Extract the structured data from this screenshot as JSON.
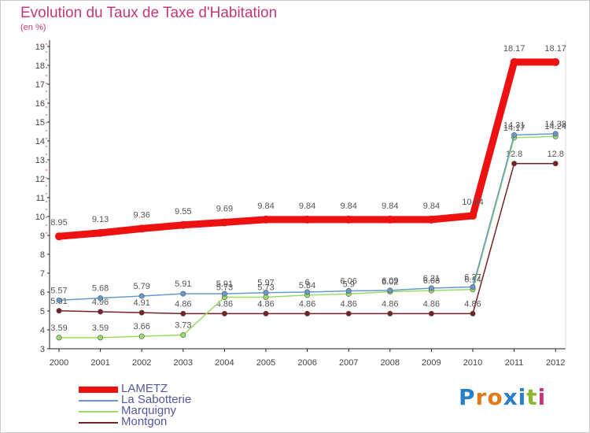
{
  "chart_data": {
    "type": "line",
    "title": "Evolution du Taux de Taxe d'Habitation",
    "ylabel": "(en %)",
    "xlabel": "",
    "ylim": [
      3,
      19
    ],
    "y_ticks": [
      "3",
      "4",
      "5",
      "6",
      "7",
      "8",
      "9",
      "10",
      "11",
      "12",
      "13",
      "14",
      "15",
      "16",
      "17",
      "18",
      "19"
    ],
    "categories": [
      "2000",
      "2001",
      "2002",
      "2003",
      "2004",
      "2005",
      "2006",
      "2007",
      "2008",
      "2009",
      "2010",
      "2011",
      "2012"
    ],
    "series": [
      {
        "name": "LAMETZ",
        "color": "#ee1111",
        "values": [
          8.95,
          9.13,
          9.36,
          9.55,
          9.69,
          9.84,
          9.84,
          9.84,
          9.84,
          9.84,
          10.04,
          18.17,
          18.17
        ],
        "labels": [
          "8.95",
          "9.13",
          "9.36",
          "9.55",
          "9.69",
          "9.84",
          "9.84",
          "9.84",
          "9.84",
          "9.84",
          "10.04",
          "18.17",
          "18.17"
        ]
      },
      {
        "name": "La Sabotterie",
        "color": "#6699cc",
        "values": [
          5.57,
          5.68,
          5.79,
          5.91,
          5.91,
          5.97,
          6.0,
          6.06,
          6.09,
          6.21,
          6.27,
          14.31,
          14.38
        ],
        "labels": [
          "5.57",
          "5.68",
          "5.79",
          "5.91",
          "5.91",
          "5.97",
          "6",
          "6.06",
          "6.09",
          "6.21",
          "6.27",
          "14.31",
          "14.38"
        ]
      },
      {
        "name": "Marquigny",
        "color": "#99dd66",
        "values": [
          3.59,
          3.59,
          3.66,
          3.73,
          5.73,
          5.73,
          5.84,
          5.9,
          6.02,
          6.08,
          6.14,
          14.17,
          14.24
        ],
        "labels": [
          "3.59",
          "3.59",
          "3.66",
          "3.73",
          "5.73",
          "5.73",
          "5.84",
          "5.9",
          "6.02",
          "6.08",
          "6.14",
          "14.17",
          "14.24"
        ]
      },
      {
        "name": "Montgon",
        "color": "#772222",
        "values": [
          5.01,
          4.96,
          4.91,
          4.86,
          4.86,
          4.86,
          4.86,
          4.86,
          4.86,
          4.86,
          4.86,
          12.8,
          12.8
        ],
        "labels": [
          "5.01",
          "4.96",
          "4.91",
          "4.86",
          "4.86",
          "4.86",
          "4.86",
          "4.86",
          "4.86",
          "4.86",
          "4.86",
          "12.8",
          "12.8"
        ]
      }
    ],
    "legend_position": "bottom-left",
    "grid": false
  },
  "logo": {
    "letters": [
      "P",
      "r",
      "o",
      "x",
      "i",
      "t",
      "i"
    ],
    "colors": [
      "#2a7fc9",
      "#e07a1a",
      "#e07a1a",
      "#2a7fc9",
      "#2a7fc9",
      "#8ab82a",
      "#c8367a"
    ]
  }
}
